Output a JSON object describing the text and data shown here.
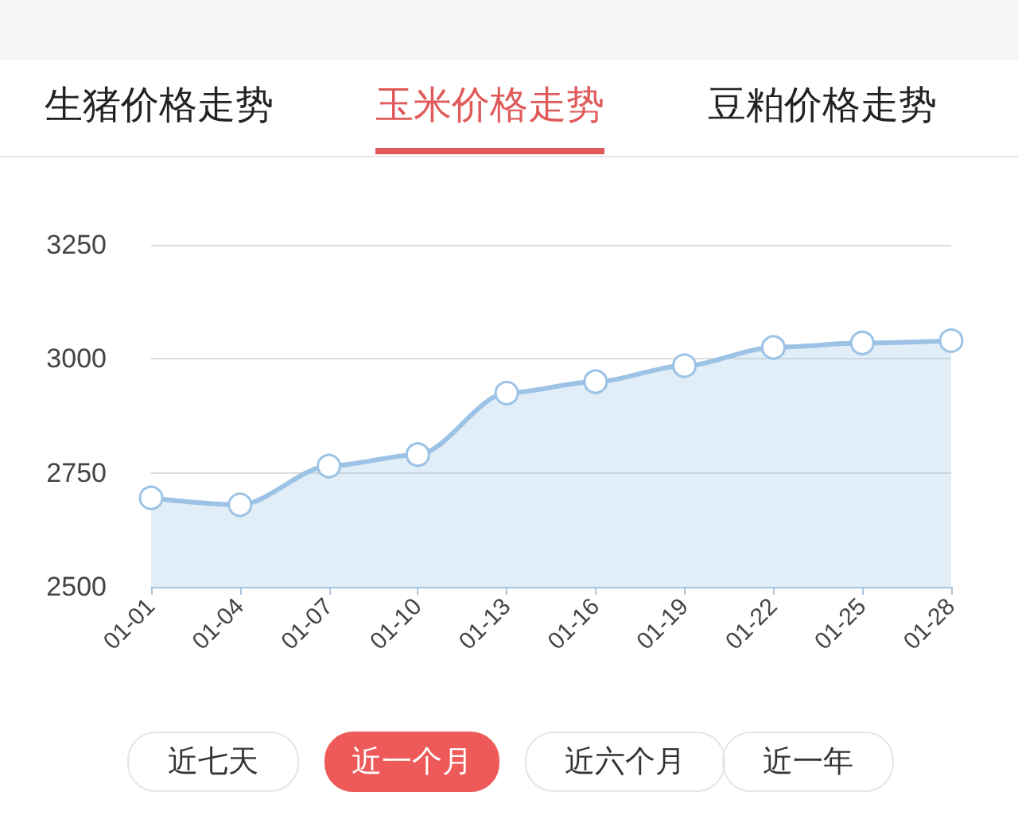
{
  "chart_data": {
    "type": "area",
    "title": "玉米价格走势",
    "annotations": [
      "生猪价格走势",
      "豆粕价格走势",
      "近七天",
      "近一个月",
      "近六个月",
      "近一年"
    ],
    "categories": [
      "01-01",
      "01-04",
      "01-07",
      "01-10",
      "01-13",
      "01-16",
      "01-19",
      "01-22",
      "01-25",
      "01-28"
    ],
    "series": [
      {
        "color": "#9cc3e6",
        "values": [
          2695,
          2680,
          2765,
          2790,
          2925,
          2950,
          2985,
          3025,
          3035,
          3040
        ]
      }
    ],
    "ylim": [
      2500,
      3250
    ],
    "yticks": [
      2500,
      2750,
      3000,
      3250
    ],
    "grid": "y",
    "marker": "circle",
    "line_style": "solid"
  }
}
